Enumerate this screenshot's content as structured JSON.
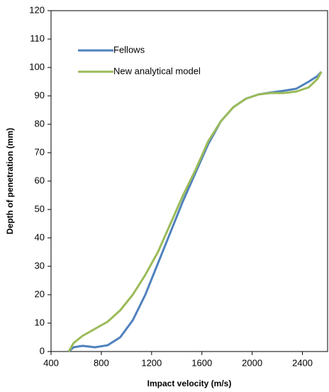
{
  "chart_data": {
    "type": "line",
    "x_label": "Impact velocity (m/s)",
    "y_label": "Depth of penetration (mm)",
    "x": [
      540,
      580,
      650,
      750,
      850,
      950,
      1050,
      1150,
      1250,
      1350,
      1450,
      1550,
      1650,
      1750,
      1850,
      1950,
      2050,
      2150,
      2250,
      2350,
      2450,
      2520,
      2550
    ],
    "series": [
      {
        "name": "Fellows",
        "color": "#4f81bd",
        "values": [
          0,
          1.5,
          2,
          1.5,
          2.2,
          5,
          11,
          20,
          31,
          42,
          53,
          63,
          73,
          81,
          86,
          89,
          90.5,
          91.2,
          91.8,
          92.5,
          95,
          97,
          98.5
        ]
      },
      {
        "name": "New analytical model",
        "color": "#9bbb59",
        "values": [
          0,
          3,
          5.5,
          8,
          10.5,
          14.5,
          20,
          27,
          35,
          45,
          55,
          64,
          74,
          81,
          86,
          89,
          90.5,
          91,
          91,
          91.5,
          93,
          96,
          98.5
        ]
      }
    ],
    "xlim": [
      400,
      2600
    ],
    "xticks": [
      400,
      800,
      1200,
      1600,
      2000,
      2400
    ],
    "ylim": [
      0,
      120
    ],
    "yticks": [
      0,
      10,
      20,
      30,
      40,
      50,
      60,
      70,
      80,
      90,
      100,
      110,
      120
    ],
    "legend": "upper-left"
  }
}
